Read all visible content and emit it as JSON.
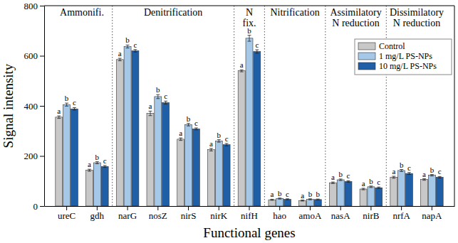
{
  "chart_data": {
    "type": "bar",
    "x_label": "Functional genes",
    "y_label": "Signal intensity",
    "categories": [
      "ureC",
      "gdh",
      "narG",
      "nosZ",
      "nirS",
      "nirK",
      "nifH",
      "hao",
      "amoA",
      "nasA",
      "nirB",
      "nrfA",
      "napA"
    ],
    "groups": [
      {
        "label_lines": [
          "Ammonifi."
        ],
        "categories": [
          0,
          1
        ]
      },
      {
        "label_lines": [
          "Denitrification"
        ],
        "categories": [
          2,
          5
        ]
      },
      {
        "label_lines": [
          "N",
          "fix."
        ],
        "categories": [
          6,
          6
        ]
      },
      {
        "label_lines": [
          "Nitrification"
        ],
        "categories": [
          7,
          8
        ]
      },
      {
        "label_lines": [
          "Assimilatory",
          "N reduction"
        ],
        "categories": [
          9,
          10
        ]
      },
      {
        "label_lines": [
          "Dissimilatory",
          "N reduction"
        ],
        "categories": [
          11,
          12
        ]
      }
    ],
    "series": [
      {
        "name": "Control",
        "color": "#c8c8c8",
        "values": [
          355,
          143,
          585,
          370,
          267,
          225,
          540,
          25,
          22,
          93,
          68,
          115,
          106
        ],
        "errors": [
          5,
          4,
          5,
          9,
          5,
          5,
          4,
          2,
          2,
          3,
          3,
          4,
          3
        ],
        "letters": [
          "a",
          "a",
          "a",
          "a",
          "a",
          "a",
          "a",
          "a",
          "a",
          "a",
          "a",
          "a",
          "a"
        ]
      },
      {
        "name": "1 mg/L PS-NPs",
        "color": "#a6c8e8",
        "values": [
          405,
          173,
          637,
          437,
          325,
          260,
          670,
          30,
          27,
          105,
          77,
          142,
          123
        ],
        "errors": [
          6,
          4,
          6,
          8,
          5,
          5,
          12,
          2,
          2,
          3,
          3,
          4,
          3
        ],
        "letters": [
          "b",
          "b",
          "b",
          "b",
          "b",
          "b",
          "b",
          "b",
          "b",
          "b",
          "b",
          "b",
          "b"
        ]
      },
      {
        "name": "10 mg/L PS-NPs",
        "color": "#1f5fa8",
        "values": [
          388,
          158,
          620,
          413,
          308,
          245,
          617,
          27,
          26,
          98,
          73,
          130,
          115
        ],
        "errors": [
          5,
          4,
          5,
          6,
          4,
          5,
          7,
          2,
          2,
          3,
          3,
          4,
          3
        ],
        "letters": [
          "c",
          "c",
          "c",
          "c",
          "c",
          "c",
          "c",
          "c",
          "b",
          "c",
          "c",
          "c",
          "c"
        ]
      }
    ],
    "ylim": [
      0,
      800
    ],
    "yticks": [
      0,
      200,
      400,
      600,
      800
    ],
    "grid": false,
    "legend": "top-right"
  }
}
